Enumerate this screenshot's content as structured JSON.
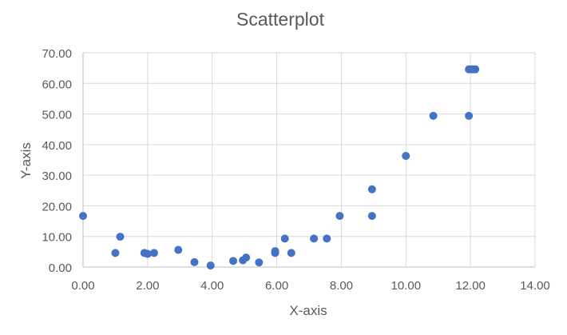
{
  "chart_data": {
    "type": "scatter",
    "title": "Scatterplot",
    "xlabel": "X-axis",
    "ylabel": "Y-axis",
    "xlim": [
      0,
      14
    ],
    "ylim": [
      0,
      70
    ],
    "x_ticks": [
      0,
      2,
      4,
      6,
      8,
      10,
      12,
      14
    ],
    "y_ticks": [
      0,
      10,
      20,
      30,
      40,
      50,
      60,
      70
    ],
    "x_tick_labels": [
      "0.00",
      "2.00",
      "4.00",
      "6.00",
      "8.00",
      "10.00",
      "12.00",
      "14.00"
    ],
    "y_tick_labels": [
      "0.00",
      "10.00",
      "20.00",
      "30.00",
      "40.00",
      "50.00",
      "60.00",
      "70.00"
    ],
    "grid": true,
    "legend": "none",
    "series": [
      {
        "color": "#4472C4",
        "points": [
          {
            "x": 0.0,
            "y": 16.7
          },
          {
            "x": 1.0,
            "y": 4.6
          },
          {
            "x": 1.15,
            "y": 9.9
          },
          {
            "x": 1.9,
            "y": 4.6
          },
          {
            "x": 2.0,
            "y": 4.3
          },
          {
            "x": 2.2,
            "y": 4.6
          },
          {
            "x": 2.95,
            "y": 5.6
          },
          {
            "x": 3.45,
            "y": 1.6
          },
          {
            "x": 3.95,
            "y": 0.5
          },
          {
            "x": 4.65,
            "y": 2.0
          },
          {
            "x": 4.95,
            "y": 2.2
          },
          {
            "x": 5.05,
            "y": 3.1
          },
          {
            "x": 5.45,
            "y": 1.5
          },
          {
            "x": 5.95,
            "y": 4.6
          },
          {
            "x": 5.95,
            "y": 5.2
          },
          {
            "x": 6.25,
            "y": 9.3
          },
          {
            "x": 6.45,
            "y": 4.6
          },
          {
            "x": 7.15,
            "y": 9.3
          },
          {
            "x": 7.55,
            "y": 9.3
          },
          {
            "x": 7.95,
            "y": 16.7
          },
          {
            "x": 8.95,
            "y": 16.7
          },
          {
            "x": 8.95,
            "y": 25.4
          },
          {
            "x": 10.0,
            "y": 36.3
          },
          {
            "x": 10.85,
            "y": 49.4
          },
          {
            "x": 11.95,
            "y": 49.4
          },
          {
            "x": 11.95,
            "y": 64.6
          },
          {
            "x": 12.05,
            "y": 64.6
          },
          {
            "x": 12.15,
            "y": 64.6
          }
        ]
      }
    ]
  }
}
